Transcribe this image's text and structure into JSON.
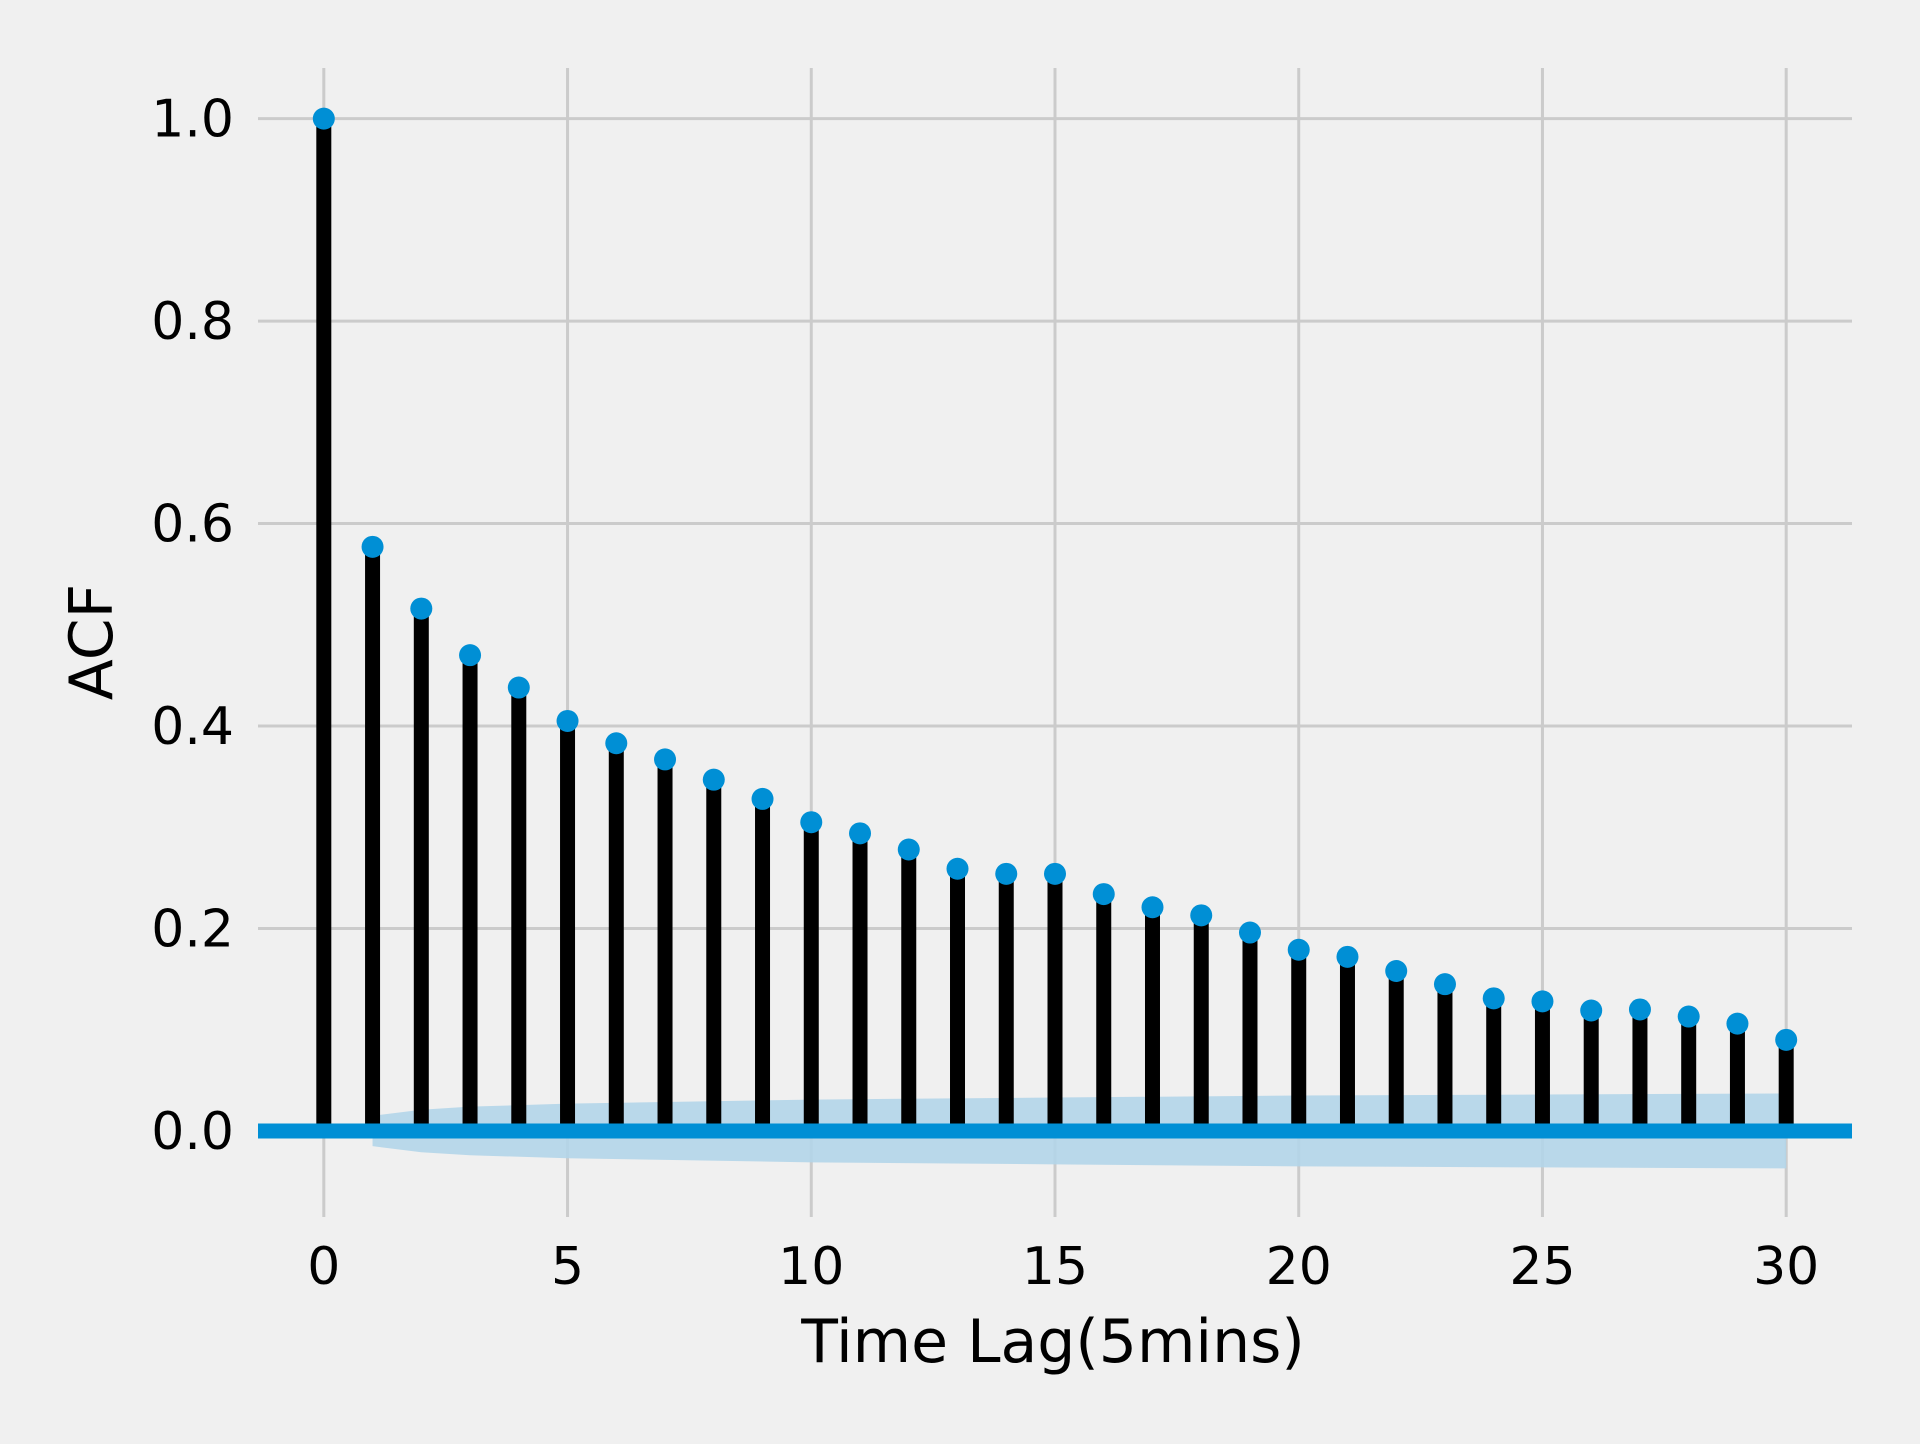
{
  "chart_data": {
    "type": "stem",
    "title": "",
    "xlabel": "Time Lag(5mins)",
    "ylabel": "ACF",
    "xlim": [
      -1.35,
      31.35
    ],
    "ylim": [
      -0.085,
      1.05
    ],
    "xticks": [
      0,
      5,
      10,
      15,
      20,
      25,
      30
    ],
    "xtick_labels": [
      "0",
      "5",
      "10",
      "15",
      "20",
      "25",
      "30"
    ],
    "yticks": [
      0.0,
      0.2,
      0.4,
      0.6,
      0.8,
      1.0
    ],
    "ytick_labels": [
      "0.0",
      "0.2",
      "0.4",
      "0.6",
      "0.8",
      "1.0"
    ],
    "grid": true,
    "series": [
      {
        "lags": [
          0,
          1,
          2,
          3,
          4,
          5,
          6,
          7,
          8,
          9,
          10,
          11,
          12,
          13,
          14,
          15,
          16,
          17,
          18,
          19,
          20,
          21,
          22,
          23,
          24,
          25,
          26,
          27,
          28,
          29,
          30
        ],
        "values": [
          1.0,
          0.577,
          0.516,
          0.47,
          0.438,
          0.405,
          0.383,
          0.367,
          0.347,
          0.328,
          0.305,
          0.294,
          0.278,
          0.259,
          0.254,
          0.254,
          0.234,
          0.221,
          0.213,
          0.196,
          0.179,
          0.172,
          0.158,
          0.145,
          0.131,
          0.128,
          0.119,
          0.12,
          0.113,
          0.106,
          0.09
        ]
      }
    ],
    "confidence_band": {
      "lags": [
        1,
        2,
        3,
        5,
        10,
        15,
        20,
        25,
        30
      ],
      "upper": [
        0.015,
        0.021,
        0.024,
        0.027,
        0.031,
        0.033,
        0.035,
        0.036,
        0.037
      ],
      "lower": [
        -0.015,
        -0.021,
        -0.024,
        -0.027,
        -0.031,
        -0.033,
        -0.035,
        -0.036,
        -0.037
      ]
    },
    "colors": {
      "background": "#f0f0f0",
      "grid": "#cbcbcb",
      "stem": "#000000",
      "marker": "#008fd5",
      "baseline": "#008fd5",
      "band": "#b3d5e9"
    }
  }
}
